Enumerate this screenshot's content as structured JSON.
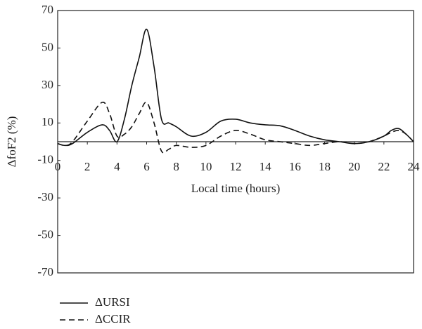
{
  "chart_data": {
    "type": "line",
    "x_label": "Local time (hours)",
    "y_label": "ΔfoF2 (%)",
    "x": [
      0,
      0.5,
      1,
      2,
      3,
      3.5,
      4,
      4.5,
      5,
      5.5,
      6,
      6.5,
      7,
      7.5,
      8,
      9,
      10,
      11,
      12,
      13,
      14,
      15,
      16,
      17,
      18,
      19,
      20,
      21,
      22,
      22.5,
      23,
      23.5,
      24
    ],
    "series": [
      {
        "name": "ΔURSI",
        "color": "#111111",
        "dash": false,
        "values": [
          -1,
          -2,
          -1,
          5,
          9,
          6,
          0,
          12,
          30,
          45,
          60,
          40,
          12,
          10,
          8,
          3,
          5,
          11,
          12,
          10,
          9,
          8.5,
          6,
          3,
          1,
          0,
          -1,
          0,
          3,
          6,
          7,
          4,
          0
        ]
      },
      {
        "name": "ΔCCIR",
        "color": "#111111",
        "dash": true,
        "values": [
          -1,
          -2,
          0,
          11,
          21,
          15,
          3,
          4,
          8,
          15,
          21,
          10,
          -5,
          -4,
          -2,
          -3,
          -2,
          3,
          6,
          4,
          1,
          0,
          -1,
          -2,
          -1,
          0,
          -1,
          0,
          3,
          5,
          6,
          4,
          0
        ]
      }
    ],
    "xlim": [
      0,
      24
    ],
    "xticks": [
      0,
      2,
      4,
      6,
      8,
      10,
      12,
      14,
      16,
      18,
      20,
      22,
      24
    ],
    "ylim": [
      -70,
      70
    ],
    "yticks": [
      -70,
      -50,
      -30,
      -10,
      10,
      30,
      50,
      70
    ],
    "grid": false
  }
}
